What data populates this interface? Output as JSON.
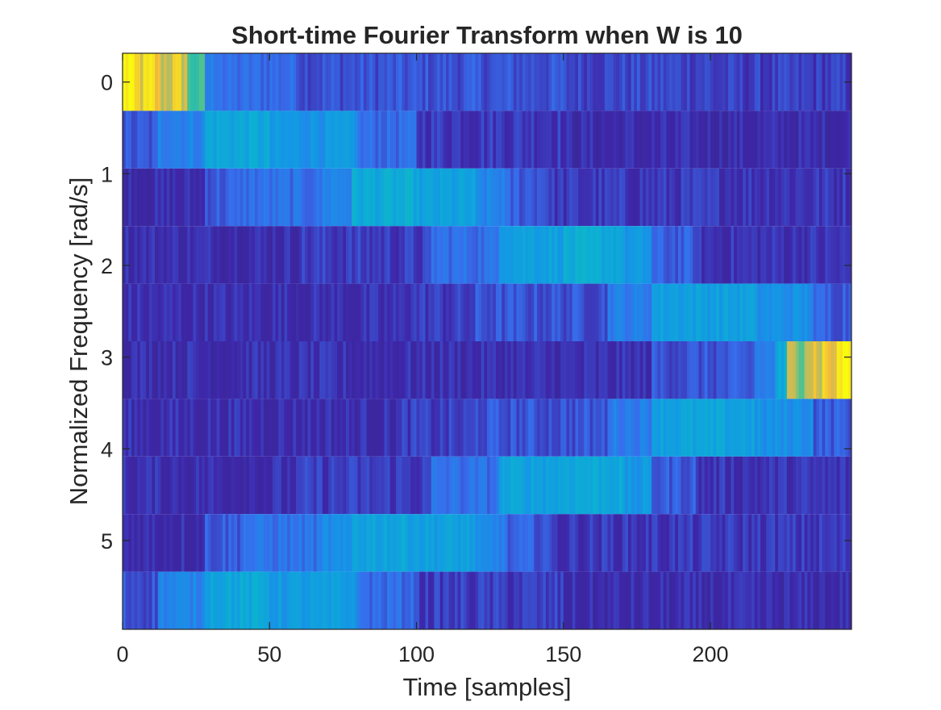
{
  "chart_data": {
    "type": "heatmap",
    "title": "Short-time Fourier Transform when W is 10",
    "xlabel": "Time [samples]",
    "ylabel": "Normalized Frequency [rad/s]",
    "xlim": [
      0,
      248
    ],
    "ylim": [
      -0.3142,
      5.969
    ],
    "y_direction": "reversed",
    "colormap": "parula",
    "x_ticks": [
      0,
      50,
      100,
      150,
      200
    ],
    "y_ticks": [
      0,
      1,
      2,
      3,
      4,
      5
    ],
    "grid": false,
    "rows": [
      {
        "freq": 0.0,
        "segments": [
          [
            0,
            3,
            1.0
          ],
          [
            3,
            8,
            0.88
          ],
          [
            8,
            12,
            0.9
          ],
          [
            12,
            16,
            0.82
          ],
          [
            16,
            22,
            0.85
          ],
          [
            22,
            28,
            0.6
          ],
          [
            28,
            34,
            0.3
          ],
          [
            34,
            60,
            0.25
          ],
          [
            60,
            100,
            0.2
          ],
          [
            100,
            150,
            0.2
          ],
          [
            150,
            200,
            0.18
          ],
          [
            200,
            248,
            0.16
          ]
        ]
      },
      {
        "freq": 0.6283,
        "segments": [
          [
            0,
            12,
            0.2
          ],
          [
            12,
            28,
            0.32
          ],
          [
            28,
            50,
            0.45
          ],
          [
            50,
            80,
            0.38
          ],
          [
            80,
            100,
            0.25
          ],
          [
            100,
            150,
            0.16
          ],
          [
            150,
            248,
            0.12
          ]
        ]
      },
      {
        "freq": 1.2566,
        "segments": [
          [
            0,
            28,
            0.12
          ],
          [
            28,
            40,
            0.22
          ],
          [
            40,
            68,
            0.26
          ],
          [
            68,
            78,
            0.33
          ],
          [
            78,
            100,
            0.46
          ],
          [
            100,
            120,
            0.42
          ],
          [
            120,
            130,
            0.32
          ],
          [
            130,
            145,
            0.22
          ],
          [
            145,
            248,
            0.15
          ]
        ]
      },
      {
        "freq": 1.885,
        "segments": [
          [
            0,
            60,
            0.13
          ],
          [
            60,
            105,
            0.16
          ],
          [
            105,
            128,
            0.26
          ],
          [
            128,
            150,
            0.43
          ],
          [
            150,
            170,
            0.46
          ],
          [
            170,
            180,
            0.38
          ],
          [
            180,
            195,
            0.22
          ],
          [
            195,
            248,
            0.14
          ]
        ]
      },
      {
        "freq": 2.5133,
        "segments": [
          [
            0,
            95,
            0.13
          ],
          [
            95,
            120,
            0.16
          ],
          [
            120,
            165,
            0.2
          ],
          [
            165,
            180,
            0.3
          ],
          [
            180,
            215,
            0.42
          ],
          [
            215,
            235,
            0.36
          ],
          [
            235,
            248,
            0.22
          ]
        ]
      },
      {
        "freq": 3.1416,
        "segments": [
          [
            0,
            180,
            0.13
          ],
          [
            180,
            215,
            0.2
          ],
          [
            215,
            222,
            0.3
          ],
          [
            222,
            226,
            0.45
          ],
          [
            226,
            232,
            0.75
          ],
          [
            232,
            238,
            0.85
          ],
          [
            238,
            244,
            0.88
          ],
          [
            244,
            248,
            1.0
          ]
        ]
      },
      {
        "freq": 3.7699,
        "segments": [
          [
            0,
            95,
            0.13
          ],
          [
            95,
            120,
            0.16
          ],
          [
            120,
            165,
            0.2
          ],
          [
            165,
            180,
            0.3
          ],
          [
            180,
            215,
            0.43
          ],
          [
            215,
            235,
            0.36
          ],
          [
            235,
            248,
            0.22
          ]
        ]
      },
      {
        "freq": 4.3982,
        "segments": [
          [
            0,
            60,
            0.13
          ],
          [
            60,
            105,
            0.16
          ],
          [
            105,
            128,
            0.26
          ],
          [
            128,
            150,
            0.43
          ],
          [
            150,
            170,
            0.46
          ],
          [
            170,
            180,
            0.38
          ],
          [
            180,
            195,
            0.22
          ],
          [
            195,
            248,
            0.14
          ]
        ]
      },
      {
        "freq": 5.0265,
        "segments": [
          [
            0,
            28,
            0.13
          ],
          [
            28,
            40,
            0.22
          ],
          [
            40,
            68,
            0.27
          ],
          [
            68,
            78,
            0.34
          ],
          [
            78,
            100,
            0.44
          ],
          [
            100,
            120,
            0.42
          ],
          [
            120,
            130,
            0.32
          ],
          [
            130,
            145,
            0.22
          ],
          [
            145,
            248,
            0.15
          ]
        ]
      },
      {
        "freq": 5.6549,
        "segments": [
          [
            0,
            12,
            0.2
          ],
          [
            12,
            28,
            0.32
          ],
          [
            28,
            50,
            0.45
          ],
          [
            50,
            80,
            0.4
          ],
          [
            80,
            100,
            0.25
          ],
          [
            100,
            150,
            0.16
          ],
          [
            150,
            248,
            0.12
          ]
        ]
      }
    ]
  }
}
